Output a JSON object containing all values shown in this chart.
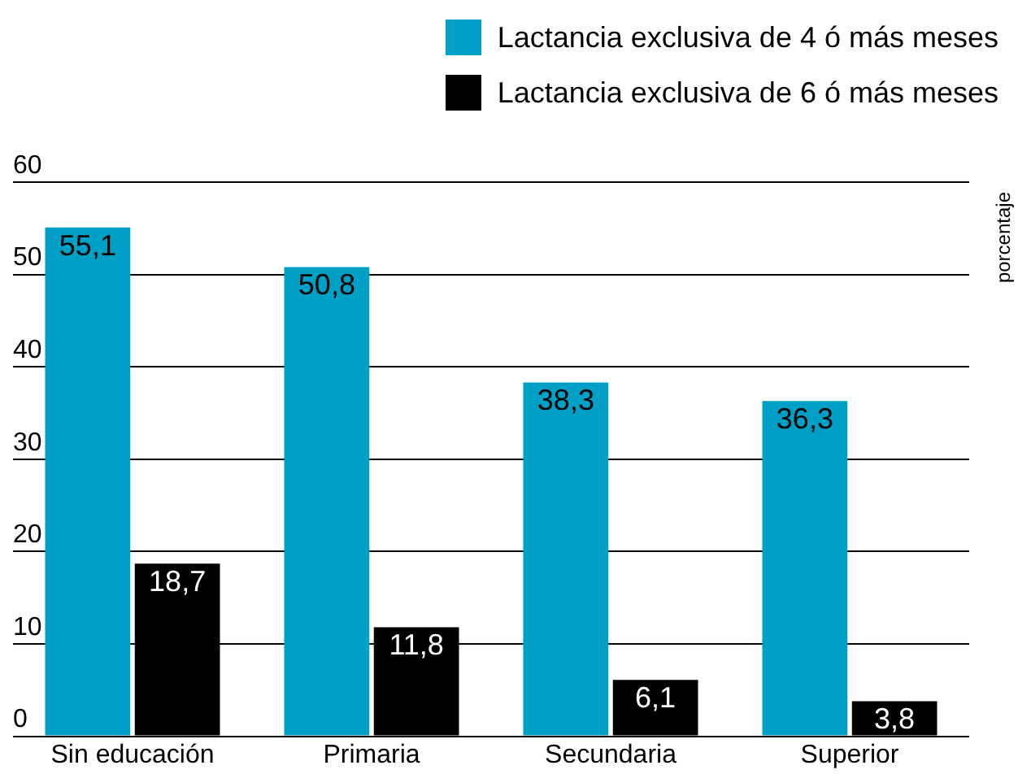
{
  "chart_data": {
    "type": "bar",
    "ylabel": "porcentaje",
    "categories": [
      "Sin educación",
      "Primaria",
      "Secundaria",
      "Superior"
    ],
    "series": [
      {
        "name": "Lactancia exclusiva de 4 ó más meses",
        "color": "#00a0c6",
        "values": [
          55.1,
          50.8,
          38.3,
          36.3
        ],
        "value_labels": [
          "55,1",
          "50,8",
          "38,3",
          "36,3"
        ]
      },
      {
        "name": "Lactancia exclusiva de 6 ó más meses",
        "color": "#000000",
        "values": [
          18.7,
          11.8,
          6.1,
          3.8
        ],
        "value_labels": [
          "18,7",
          "11,8",
          "6,1",
          "3,8"
        ]
      }
    ],
    "ylim": [
      0,
      60
    ],
    "yticks": [
      0,
      10,
      20,
      30,
      40,
      50,
      60
    ],
    "grid": "y",
    "legend": "top right"
  }
}
